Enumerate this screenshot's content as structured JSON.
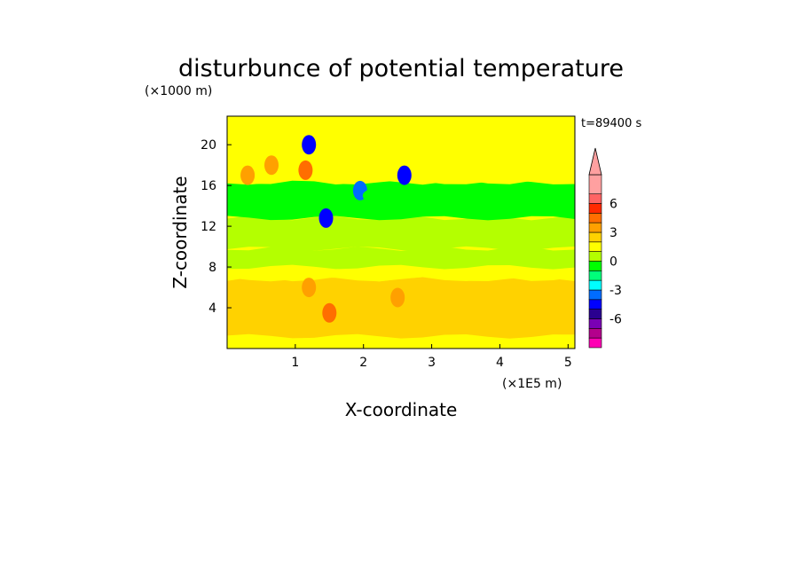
{
  "chart_data": {
    "type": "heatmap",
    "title": "disturbunce of potential temperature",
    "xlabel": "X-coordinate",
    "ylabel": "Z-coordinate",
    "x_unit": "(×1E5 m)",
    "y_unit": "(×1000 m)",
    "time_label": "t=89400 s",
    "xlim": [
      0,
      5.1
    ],
    "ylim": [
      0,
      22.8
    ],
    "x_ticks": [
      1,
      2,
      3,
      4,
      5
    ],
    "y_ticks": [
      4,
      8,
      12,
      16,
      20
    ],
    "colorbar": {
      "bounds": [
        -9,
        -8,
        -7,
        -6,
        -5,
        -4,
        -3,
        -2,
        -1,
        0,
        1,
        2,
        3,
        4,
        5,
        6,
        7,
        9
      ],
      "colors": [
        "#ff00b4",
        "#b4008c",
        "#7a00b4",
        "#2a0090",
        "#0000ff",
        "#006cff",
        "#00ffff",
        "#00ff7a",
        "#00ff00",
        "#b4ff00",
        "#ffff00",
        "#ffd200",
        "#ffa000",
        "#ff6e00",
        "#ff2a00",
        "#ff6464",
        "#ffa0a0"
      ],
      "tick_values": [
        6,
        3,
        0,
        -3,
        -6
      ],
      "tick_labels": [
        "6",
        "3",
        "0",
        "-3",
        "-6"
      ],
      "extend_max": true
    },
    "background_value": 1.3,
    "bands": [
      {
        "z": [
          0,
          1.2
        ],
        "value": 1.5
      },
      {
        "z": [
          1.2,
          6.8
        ],
        "value": 2.5
      },
      {
        "z": [
          6.8,
          8.0
        ],
        "value": 1.5
      },
      {
        "z": [
          8.0,
          9.8
        ],
        "value": 0.3
      },
      {
        "z": [
          9.8,
          12.8
        ],
        "value": 0.6
      },
      {
        "z": [
          12.8,
          16.3
        ],
        "value": -0.5
      },
      {
        "z": [
          16.3,
          22.8
        ],
        "value": 1.3
      }
    ],
    "features": [
      {
        "x": 1.15,
        "z": 17.5,
        "value": 4.5
      },
      {
        "x": 0.65,
        "z": 18.0,
        "value": 3.0
      },
      {
        "x": 0.3,
        "z": 17.0,
        "value": 3.0
      },
      {
        "x": 1.5,
        "z": 3.5,
        "value": 4.5
      },
      {
        "x": 1.2,
        "z": 6.0,
        "value": 3.5
      },
      {
        "x": 2.5,
        "z": 5.0,
        "value": 3.5
      },
      {
        "x": 1.2,
        "z": 20.0,
        "value": -4.5
      },
      {
        "x": 2.6,
        "z": 17.0,
        "value": -4.5
      },
      {
        "x": 1.95,
        "z": 15.5,
        "value": -4.0
      },
      {
        "x": 1.45,
        "z": 12.8,
        "value": -4.5
      },
      {
        "x": 0.8,
        "z": 14.2,
        "value": -0.3
      },
      {
        "x": 2.3,
        "z": 15.0,
        "value": -0.8
      },
      {
        "x": 4.0,
        "z": 14.5,
        "value": -0.3
      }
    ]
  }
}
